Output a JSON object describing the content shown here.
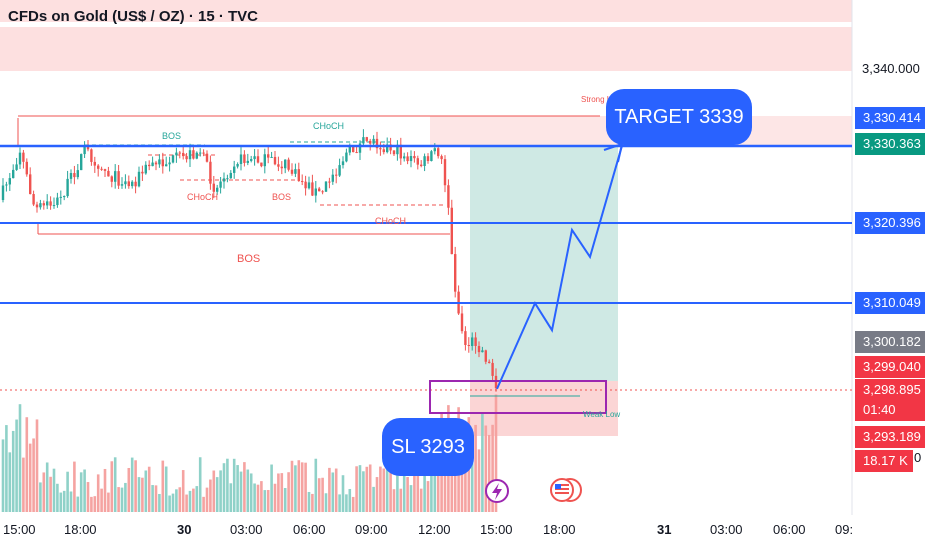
{
  "header": {
    "title": "CFDs on Gold (US$ / OZ) · 15 · TVC"
  },
  "chart_data": {
    "type": "candlestick",
    "ylim": [
      3285,
      3352
    ],
    "yticks": [
      3340
    ],
    "price_labels": [
      {
        "value": "3,340.000",
        "kind": "plain"
      },
      {
        "value": "3,330.414",
        "kind": "blue"
      },
      {
        "value": "3,330.363",
        "kind": "green"
      },
      {
        "value": "3,320.396",
        "kind": "blue"
      },
      {
        "value": "3,310.049",
        "kind": "blue"
      },
      {
        "value": "3,300.182",
        "kind": "gray"
      },
      {
        "value": "3,299.040",
        "kind": "red"
      },
      {
        "value": "3,298.895",
        "kind": "red"
      },
      {
        "value": "01:40",
        "kind": "red"
      },
      {
        "value": "3,293.189",
        "kind": "red"
      },
      {
        "value": "18.17 K",
        "kind": "red"
      },
      {
        "value": "0",
        "kind": "plain"
      }
    ],
    "time_labels": [
      {
        "text": "15:00",
        "bold": false
      },
      {
        "text": "18:00",
        "bold": false
      },
      {
        "text": "30",
        "bold": true
      },
      {
        "text": "03:00",
        "bold": false
      },
      {
        "text": "06:00",
        "bold": false
      },
      {
        "text": "09:00",
        "bold": false
      },
      {
        "text": "12:00",
        "bold": false
      },
      {
        "text": "15:00",
        "bold": false
      },
      {
        "text": "18:00",
        "bold": false
      },
      {
        "text": "31",
        "bold": true
      },
      {
        "text": "03:00",
        "bold": false
      },
      {
        "text": "06:00",
        "bold": false
      },
      {
        "text": "09:",
        "bold": false
      }
    ],
    "horizontal_levels": [
      3330.363,
      3320.396,
      3310.049
    ],
    "annotations": [
      {
        "text": "BOS"
      },
      {
        "text": "CHoCH"
      },
      {
        "text": "CHoCH"
      },
      {
        "text": "BOS"
      },
      {
        "text": "CHoCH"
      },
      {
        "text": "BOS"
      },
      {
        "text": "Strong High"
      },
      {
        "text": "Weak Low"
      }
    ],
    "target_label": "TARGET 3339",
    "stop_label": "SL 3293",
    "projection_path": [
      3298.9,
      3310.0,
      3306.5,
      3319.5,
      3316.0,
      3330.4
    ],
    "colors": {
      "up": "#26a69a",
      "down": "#ef5350",
      "level": "#2962ff",
      "zone": "#fde0e0"
    }
  }
}
